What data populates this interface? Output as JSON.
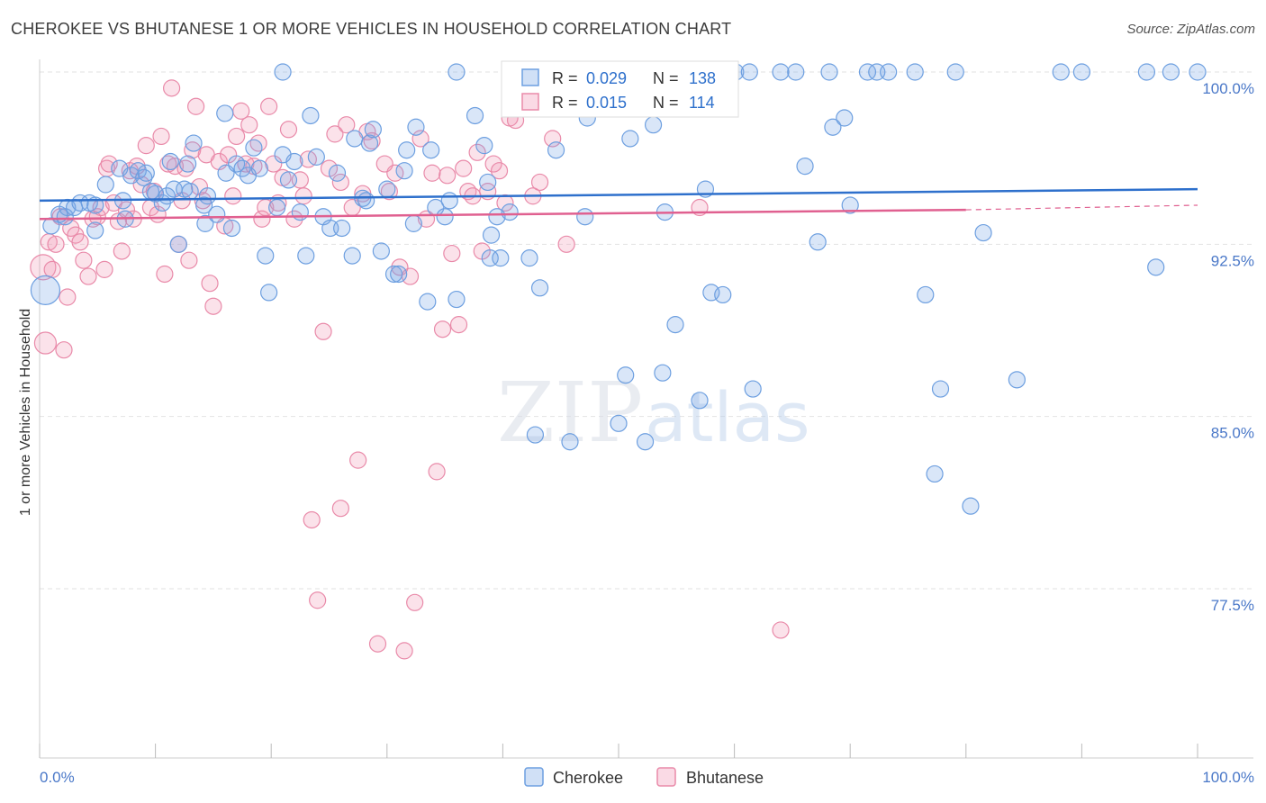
{
  "title": "CHEROKEE VS BHUTANESE 1 OR MORE VEHICLES IN HOUSEHOLD CORRELATION CHART",
  "source": "Source: ZipAtlas.com",
  "watermark": {
    "zip": "ZIP",
    "atlas": "atlas"
  },
  "legend_box": {
    "rows": [
      {
        "r_label": "R =",
        "r_value": "0.029",
        "n_label": "N =",
        "n_value": "138"
      },
      {
        "r_label": "R =",
        "r_value": "0.015",
        "n_label": "N =",
        "n_value": "114"
      }
    ]
  },
  "colors": {
    "blue": "#6d9fe0",
    "blue_fill": "rgba(120,165,230,0.28)",
    "blue_line": "#2e70cc",
    "pink": "#e98aa9",
    "pink_fill": "rgba(240,150,180,0.28)",
    "pink_line": "#e06090",
    "axis_text": "#4a78c8",
    "grid": "#e2e2e2"
  },
  "chart_data": {
    "type": "scatter",
    "title": "CHEROKEE VS BHUTANESE 1 OR MORE VEHICLES IN HOUSEHOLD CORRELATION CHART",
    "xlabel": "",
    "ylabel": "1 or more Vehicles in Household",
    "xlim": [
      0,
      100
    ],
    "ylim": [
      70,
      101.2
    ],
    "x_tick_labels": [
      "0.0%",
      "100.0%"
    ],
    "y_ticks": [
      {
        "value": 100.0,
        "label": "100.0%"
      },
      {
        "value": 92.5,
        "label": "92.5%"
      },
      {
        "value": 85.0,
        "label": "85.0%"
      },
      {
        "value": 77.5,
        "label": "77.5%"
      }
    ],
    "grid": true,
    "legend_position": "bottom-center",
    "series": [
      {
        "name": "Cherokee",
        "color": "#6d9fe0",
        "r": 0.029,
        "n": 138,
        "trend": {
          "x0": 0,
          "y0": 94.4,
          "x1": 100,
          "y1": 94.9,
          "dashed_from": null
        },
        "points": [
          [
            0.5,
            90.5
          ],
          [
            1,
            93.3
          ],
          [
            1.7,
            93.8
          ],
          [
            2.2,
            93.7
          ],
          [
            2.4,
            94.1
          ],
          [
            3,
            94.1
          ],
          [
            3.5,
            94.3
          ],
          [
            4.3,
            94.3
          ],
          [
            4.8,
            94.2
          ],
          [
            4.8,
            93.1
          ],
          [
            5.7,
            95.1
          ],
          [
            6.9,
            95.8
          ],
          [
            7.2,
            94.4
          ],
          [
            7.4,
            93.6
          ],
          [
            7.9,
            95.5
          ],
          [
            8.5,
            95.7
          ],
          [
            9,
            95.4
          ],
          [
            9.2,
            95.6
          ],
          [
            9.6,
            94.8
          ],
          [
            10,
            94.7
          ],
          [
            10.6,
            94.3
          ],
          [
            11,
            94.6
          ],
          [
            11.3,
            96.1
          ],
          [
            11.6,
            94.9
          ],
          [
            12,
            92.5
          ],
          [
            12.5,
            94.9
          ],
          [
            12.8,
            96.0
          ],
          [
            13,
            94.8
          ],
          [
            13.3,
            96.9
          ],
          [
            14.2,
            94.2
          ],
          [
            14.3,
            93.4
          ],
          [
            14.5,
            94.6
          ],
          [
            15.3,
            93.8
          ],
          [
            16,
            98.2
          ],
          [
            16.1,
            95.6
          ],
          [
            16.6,
            93.2
          ],
          [
            17,
            96.0
          ],
          [
            17.5,
            95.8
          ],
          [
            18,
            95.5
          ],
          [
            18.5,
            96.7
          ],
          [
            19,
            95.8
          ],
          [
            19.5,
            92.0
          ],
          [
            19.8,
            90.4
          ],
          [
            20.5,
            94.1
          ],
          [
            21,
            96.4
          ],
          [
            21.5,
            95.3
          ],
          [
            22,
            96.1
          ],
          [
            22.5,
            93.9
          ],
          [
            23,
            92.0
          ],
          [
            23.4,
            98.1
          ],
          [
            23.9,
            96.3
          ],
          [
            24.5,
            93.7
          ],
          [
            25.1,
            93.2
          ],
          [
            25.7,
            95.6
          ],
          [
            26.1,
            93.2
          ],
          [
            27,
            92.0
          ],
          [
            27.2,
            97.1
          ],
          [
            27.9,
            94.5
          ],
          [
            28.2,
            94.4
          ],
          [
            28.5,
            96.9
          ],
          [
            28.8,
            97.5
          ],
          [
            29.5,
            92.2
          ],
          [
            30,
            94.9
          ],
          [
            30.6,
            91.2
          ],
          [
            31,
            91.2
          ],
          [
            31.5,
            95.7
          ],
          [
            31.7,
            96.6
          ],
          [
            32.3,
            93.4
          ],
          [
            32.5,
            97.6
          ],
          [
            33.5,
            90.0
          ],
          [
            33.8,
            96.6
          ],
          [
            34.2,
            94.1
          ],
          [
            35,
            93.7
          ],
          [
            35.4,
            94.4
          ],
          [
            36,
            90.1
          ],
          [
            37.6,
            98.1
          ],
          [
            38.4,
            96.8
          ],
          [
            38.7,
            95.2
          ],
          [
            38.9,
            91.9
          ],
          [
            39,
            92.9
          ],
          [
            39.5,
            93.7
          ],
          [
            39.8,
            91.9
          ],
          [
            40.6,
            93.9
          ],
          [
            42.3,
            91.9
          ],
          [
            42.8,
            84.2
          ],
          [
            43.2,
            90.6
          ],
          [
            44.6,
            96.6
          ],
          [
            45.7,
            99.5
          ],
          [
            45.8,
            83.9
          ],
          [
            47.1,
            93.7
          ],
          [
            47.3,
            98.0
          ],
          [
            48,
            100.0
          ],
          [
            50,
            84.7
          ],
          [
            50.6,
            86.8
          ],
          [
            51,
            97.1
          ],
          [
            52.3,
            83.9
          ],
          [
            53,
            97.7
          ],
          [
            53.8,
            86.9
          ],
          [
            54,
            93.9
          ],
          [
            54.9,
            89.0
          ],
          [
            57,
            85.7
          ],
          [
            57.5,
            94.9
          ],
          [
            58,
            90.4
          ],
          [
            59,
            90.3
          ],
          [
            60.1,
            100.0
          ],
          [
            61.3,
            100.0
          ],
          [
            61.6,
            86.2
          ],
          [
            64,
            100.0
          ],
          [
            65.3,
            100.0
          ],
          [
            66.1,
            95.9
          ],
          [
            67.2,
            92.6
          ],
          [
            68.2,
            100.0
          ],
          [
            68.5,
            97.6
          ],
          [
            69.5,
            98.0
          ],
          [
            70,
            94.2
          ],
          [
            71.5,
            100.0
          ],
          [
            72.3,
            100.0
          ],
          [
            73.3,
            100.0
          ],
          [
            75.6,
            100.0
          ],
          [
            76.5,
            90.3
          ],
          [
            77.3,
            82.5
          ],
          [
            77.8,
            86.2
          ],
          [
            79.1,
            100.0
          ],
          [
            80.4,
            81.1
          ],
          [
            81.5,
            93.0
          ],
          [
            84.4,
            86.6
          ],
          [
            88.2,
            100.0
          ],
          [
            90,
            100.0
          ],
          [
            95.6,
            100.0
          ],
          [
            96.4,
            91.5
          ],
          [
            97.7,
            100.0
          ],
          [
            100,
            100.0
          ],
          [
            36,
            100.0
          ],
          [
            46,
            100.0
          ],
          [
            21,
            100.0
          ]
        ]
      },
      {
        "name": "Bhutanese",
        "color": "#e98aa9",
        "r": 0.015,
        "n": 114,
        "trend": {
          "x0": 0,
          "y0": 93.6,
          "x1": 80,
          "y1": 94.0,
          "dashed_from": 80,
          "dashed_to": 100,
          "dashed_y_end": 94.2
        },
        "points": [
          [
            0.3,
            91.5
          ],
          [
            0.5,
            88.2
          ],
          [
            0.8,
            92.6
          ],
          [
            1.1,
            91.4
          ],
          [
            1.4,
            92.5
          ],
          [
            1.8,
            93.7
          ],
          [
            2.1,
            87.9
          ],
          [
            2.4,
            90.2
          ],
          [
            2.7,
            93.2
          ],
          [
            3.1,
            92.9
          ],
          [
            3.5,
            92.6
          ],
          [
            3.8,
            91.8
          ],
          [
            4.2,
            91.1
          ],
          [
            4.6,
            93.6
          ],
          [
            5,
            93.7
          ],
          [
            5.3,
            94.1
          ],
          [
            5.6,
            91.4
          ],
          [
            5.8,
            95.8
          ],
          [
            6,
            96.0
          ],
          [
            6.4,
            94.3
          ],
          [
            6.8,
            93.5
          ],
          [
            7.1,
            92.2
          ],
          [
            7.5,
            94.0
          ],
          [
            7.8,
            95.7
          ],
          [
            8.1,
            93.6
          ],
          [
            8.4,
            95.9
          ],
          [
            8.8,
            95.1
          ],
          [
            9.2,
            96.8
          ],
          [
            9.6,
            94.1
          ],
          [
            9.9,
            94.8
          ],
          [
            10.2,
            93.8
          ],
          [
            10.5,
            97.2
          ],
          [
            10.8,
            91.2
          ],
          [
            11.1,
            96.0
          ],
          [
            11.4,
            99.3
          ],
          [
            11.7,
            95.9
          ],
          [
            12,
            92.5
          ],
          [
            12.3,
            94.4
          ],
          [
            12.6,
            95.8
          ],
          [
            12.9,
            91.8
          ],
          [
            13.2,
            96.6
          ],
          [
            13.5,
            98.5
          ],
          [
            13.8,
            95.0
          ],
          [
            14.1,
            94.4
          ],
          [
            14.4,
            96.4
          ],
          [
            14.7,
            90.8
          ],
          [
            15,
            89.8
          ],
          [
            15.5,
            96.1
          ],
          [
            16,
            93.3
          ],
          [
            16.3,
            96.4
          ],
          [
            16.7,
            94.6
          ],
          [
            17,
            97.2
          ],
          [
            17.4,
            98.3
          ],
          [
            17.8,
            96.0
          ],
          [
            18.1,
            97.7
          ],
          [
            18.5,
            95.9
          ],
          [
            18.9,
            96.9
          ],
          [
            19.2,
            93.6
          ],
          [
            19.5,
            94.1
          ],
          [
            19.8,
            98.5
          ],
          [
            20.2,
            96.0
          ],
          [
            20.6,
            94.3
          ],
          [
            21,
            95.4
          ],
          [
            21.5,
            97.5
          ],
          [
            22,
            93.6
          ],
          [
            22.5,
            95.3
          ],
          [
            22.8,
            94.6
          ],
          [
            23.2,
            96.2
          ],
          [
            23.5,
            80.5
          ],
          [
            24,
            77.0
          ],
          [
            24.5,
            88.7
          ],
          [
            25,
            95.8
          ],
          [
            25.5,
            97.3
          ],
          [
            26,
            95.2
          ],
          [
            26.5,
            97.7
          ],
          [
            27,
            94.1
          ],
          [
            27.5,
            83.1
          ],
          [
            27.9,
            94.7
          ],
          [
            28.3,
            97.4
          ],
          [
            28.7,
            97.0
          ],
          [
            29.2,
            75.1
          ],
          [
            29.8,
            96.0
          ],
          [
            30.2,
            94.8
          ],
          [
            30.7,
            95.6
          ],
          [
            31.1,
            91.5
          ],
          [
            31.5,
            74.8
          ],
          [
            32,
            91.1
          ],
          [
            32.4,
            76.9
          ],
          [
            32.9,
            97.1
          ],
          [
            33.4,
            93.6
          ],
          [
            33.9,
            95.6
          ],
          [
            34.3,
            82.6
          ],
          [
            34.8,
            88.8
          ],
          [
            35.2,
            95.5
          ],
          [
            35.6,
            92.1
          ],
          [
            36.2,
            89.0
          ],
          [
            36.6,
            95.8
          ],
          [
            37,
            94.8
          ],
          [
            37.4,
            94.6
          ],
          [
            37.8,
            96.5
          ],
          [
            38.2,
            92.2
          ],
          [
            38.7,
            94.8
          ],
          [
            39.2,
            96.0
          ],
          [
            39.7,
            95.7
          ],
          [
            40.2,
            94.3
          ],
          [
            40.6,
            98.0
          ],
          [
            41.1,
            97.9
          ],
          [
            42,
            98.8
          ],
          [
            42.6,
            94.6
          ],
          [
            43.2,
            95.2
          ],
          [
            44.3,
            97.1
          ],
          [
            45.5,
            92.5
          ],
          [
            57,
            94.1
          ],
          [
            64,
            75.7
          ],
          [
            26,
            81.0
          ]
        ]
      }
    ]
  },
  "bottom_legend": [
    {
      "name": "Cherokee"
    },
    {
      "name": "Bhutanese"
    }
  ]
}
